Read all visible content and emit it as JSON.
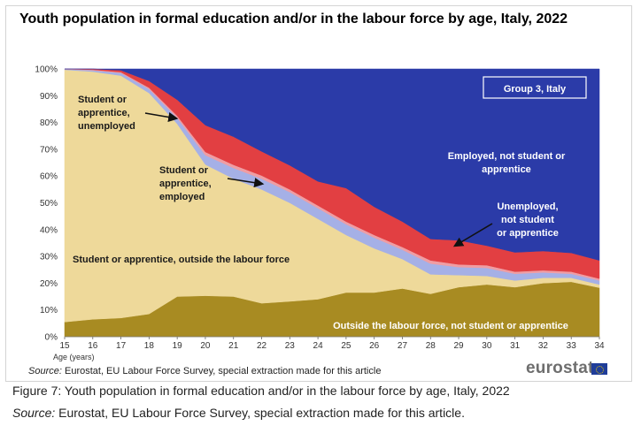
{
  "chart_data": {
    "type": "area",
    "title": "Youth population in formal education and/or in the labour force by age, Italy, 2022",
    "xlabel": "Age (years)",
    "ylabel": "",
    "x": [
      15,
      16,
      17,
      18,
      19,
      20,
      21,
      22,
      23,
      24,
      25,
      26,
      27,
      28,
      29,
      30,
      31,
      32,
      33,
      34
    ],
    "ylim": [
      0,
      100
    ],
    "y_ticks": [
      "0%",
      "10%",
      "20%",
      "30%",
      "40%",
      "50%",
      "60%",
      "70%",
      "80%",
      "90%",
      "100%"
    ],
    "stacking": "cumulative",
    "series": [
      {
        "name": "Outside the labour force, not student or apprentice",
        "color": "#a88b22",
        "values": [
          5.5,
          6.5,
          7.0,
          8.5,
          15.0,
          15.3,
          15.0,
          12.5,
          13.2,
          14.0,
          16.5,
          16.5,
          18.0,
          16.0,
          18.5,
          19.5,
          18.5,
          20.0,
          20.5,
          18.3
        ]
      },
      {
        "name": "Student or apprentice, outside the labour force",
        "color": "#eed99a",
        "values": [
          94.2,
          92.5,
          90.5,
          82.5,
          64.5,
          49.0,
          44.0,
          42.5,
          36.8,
          30.0,
          21.5,
          16.5,
          11.0,
          7.3,
          4.5,
          3.2,
          2.5,
          2.0,
          1.5,
          1.2
        ]
      },
      {
        "name": "Student or apprentice, employed",
        "color": "#a5b0e6",
        "values": [
          0.2,
          0.5,
          1.0,
          1.5,
          2.2,
          3.5,
          4.0,
          4.0,
          4.0,
          4.0,
          4.0,
          4.0,
          3.5,
          4.0,
          3.0,
          3.0,
          2.5,
          2.0,
          1.5,
          1.5
        ]
      },
      {
        "name": "Student or apprentice, unemployed",
        "color": "#ef9da3",
        "values": [
          0.1,
          0.2,
          0.3,
          0.5,
          0.8,
          1.2,
          1.2,
          1.2,
          1.0,
          1.0,
          1.0,
          1.0,
          1.0,
          1.2,
          1.0,
          1.0,
          0.8,
          0.8,
          0.8,
          0.7
        ]
      },
      {
        "name": "Unemployed, not student or apprentice",
        "color": "#e23f42",
        "values": [
          0.0,
          0.3,
          0.7,
          2.5,
          6.0,
          10.0,
          10.5,
          9.0,
          9.0,
          9.0,
          12.5,
          10.5,
          9.5,
          8.0,
          9.0,
          7.3,
          7.2,
          7.2,
          7.0,
          6.8
        ]
      },
      {
        "name": "Employed, not student or apprentice",
        "color": "#2b3ba8",
        "values": [
          0.0,
          0.0,
          0.5,
          4.5,
          11.5,
          21.0,
          25.3,
          30.8,
          36.0,
          42.0,
          44.5,
          51.5,
          57.0,
          63.5,
          64.0,
          66.0,
          68.5,
          68.0,
          68.7,
          71.5
        ]
      }
    ],
    "annotations": [
      {
        "lines": [
          "Student or",
          "apprentice,",
          "unemployed"
        ],
        "color": "#1a1a1a"
      },
      {
        "lines": [
          "Student or",
          "apprentice,",
          "employed"
        ],
        "color": "#1a1a1a"
      },
      {
        "lines": [
          "Student or apprentice, outside the labour force"
        ],
        "color": "#1a1a1a"
      },
      {
        "lines": [
          "Employed, not student or",
          "apprentice"
        ],
        "color": "#ffffff"
      },
      {
        "lines": [
          "Unemployed,",
          "not student",
          "or apprentice"
        ],
        "color": "#ffffff"
      },
      {
        "lines": [
          "Outside the labour force, not student or apprentice"
        ],
        "color": "#ffffff"
      }
    ],
    "legend_box": "Group 3, Italy"
  },
  "chart_source": {
    "label": "Source:",
    "text": "Eurostat, EU Labour Force Survey, special extraction made for this article"
  },
  "logo": {
    "text": "eurostat",
    "flag": "eu-flag-icon"
  },
  "caption": {
    "figure": "Figure 7: Youth population in formal education and/or in the labour force by age, Italy, 2022",
    "source_label": "Source:",
    "source_text": "Eurostat, EU Labour Force Survey, special extraction made for this article."
  }
}
